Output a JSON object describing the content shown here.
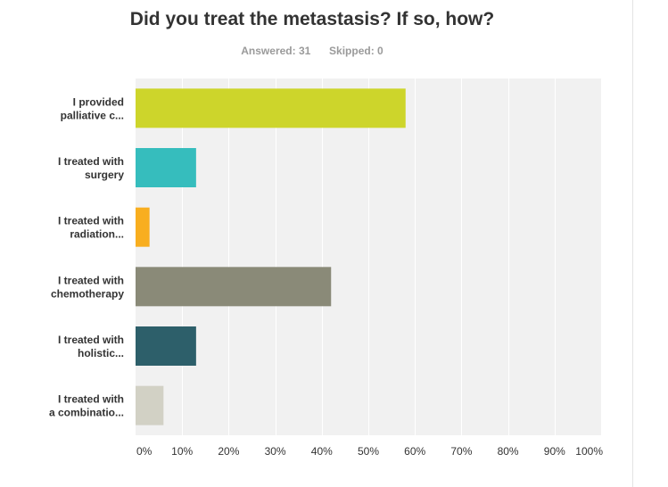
{
  "title": "Did you treat the metastasis? If so, how?",
  "stats": {
    "answered_label": "Answered:",
    "answered_value": "31",
    "skipped_label": "Skipped:",
    "skipped_value": "0"
  },
  "chart_data": {
    "type": "bar",
    "orientation": "horizontal",
    "categories": [
      [
        "I provided",
        "palliative c..."
      ],
      [
        "I treated with",
        "surgery"
      ],
      [
        "I treated with",
        "radiation..."
      ],
      [
        "I treated with",
        "chemotherapy"
      ],
      [
        "I treated with",
        "holistic..."
      ],
      [
        "I treated with",
        "a combinatio..."
      ]
    ],
    "values": [
      58,
      13,
      3,
      42,
      13,
      6
    ],
    "colors": [
      "#cdd52b",
      "#36bdbd",
      "#f8ae1f",
      "#8a8a78",
      "#2d5f6a",
      "#d2d1c5"
    ],
    "x_ticks": [
      "0%",
      "10%",
      "20%",
      "30%",
      "40%",
      "50%",
      "60%",
      "70%",
      "80%",
      "90%",
      "100%"
    ],
    "xlim": [
      0,
      100
    ],
    "grid": true,
    "plot_background": "#f1f1f1"
  }
}
